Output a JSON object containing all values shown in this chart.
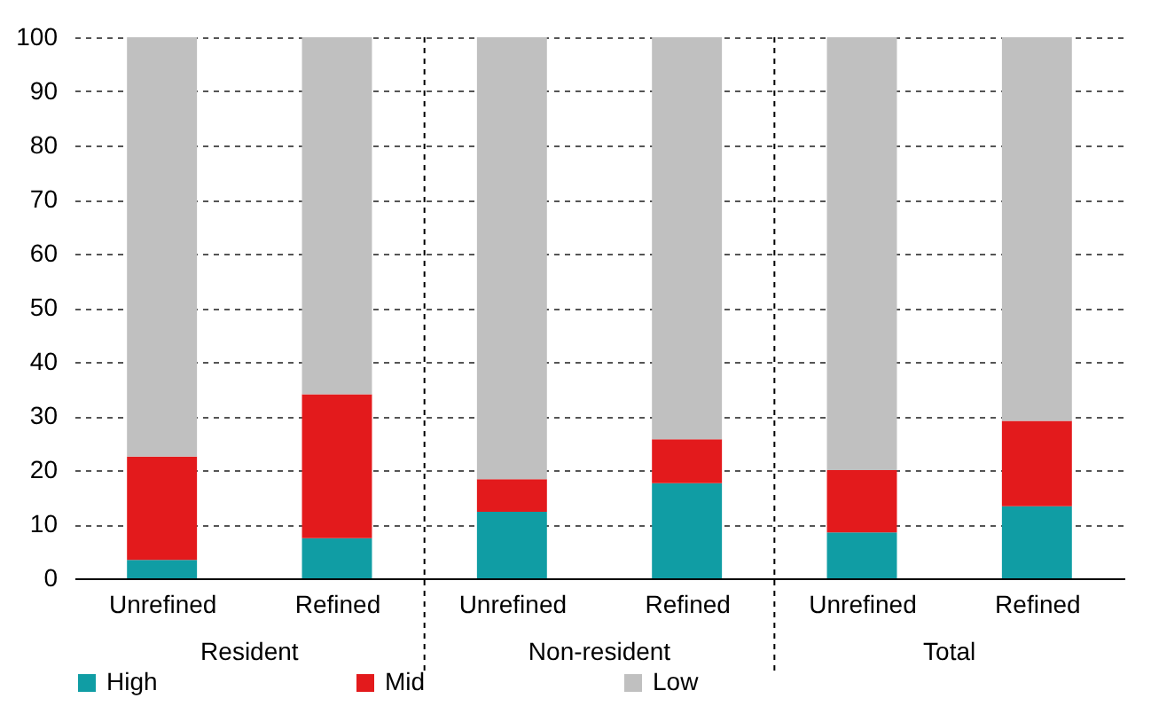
{
  "chart_data": {
    "type": "bar",
    "stacked": true,
    "categories": [
      "Unrefined",
      "Refined",
      "Unrefined",
      "Refined",
      "Unrefined",
      "Refined"
    ],
    "series": [
      {
        "name": "High",
        "color": "#109da4",
        "values": [
          3.4,
          7.4,
          12.3,
          17.6,
          8.5,
          13.3
        ]
      },
      {
        "name": "Mid",
        "color": "#e31a1c",
        "values": [
          19.1,
          26.6,
          6.0,
          8.1,
          11.5,
          15.8
        ]
      },
      {
        "name": "Low",
        "color": "#c0c0c0",
        "values": [
          77.5,
          66.0,
          81.7,
          74.3,
          80.0,
          70.9
        ]
      }
    ],
    "annotations": [
      "Resident",
      "Non-resident",
      "Total"
    ],
    "ylim": [
      0,
      100
    ],
    "yticks": [
      0,
      10,
      20,
      30,
      40,
      50,
      60,
      70,
      80,
      90,
      100
    ],
    "grid": "y",
    "legend": "bottom"
  }
}
